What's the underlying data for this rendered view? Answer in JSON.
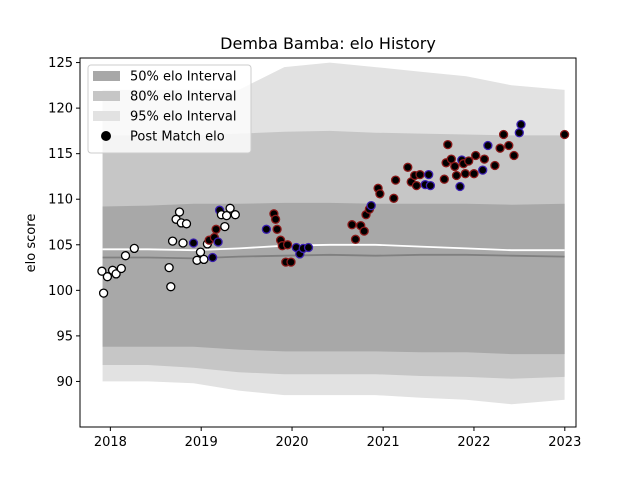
{
  "chart_data": {
    "type": "scatter",
    "title": "Demba Bamba: elo History",
    "xlabel": "",
    "ylabel": "elo score",
    "xlim": [
      "2017-09-01",
      "2023-02-15"
    ],
    "ylim": [
      85,
      125.5
    ],
    "x_ticks": [
      "2018",
      "2019",
      "2020",
      "2021",
      "2022",
      "2023"
    ],
    "y_ticks": [
      90,
      95,
      100,
      105,
      110,
      115,
      120,
      125
    ],
    "grid": false,
    "legend": {
      "position": "top-left",
      "entries": [
        "50% elo Interval",
        "80% elo Interval",
        "95% elo Interval",
        "Post Match elo"
      ]
    },
    "colors": {
      "band_50": "#a8a8a8",
      "band_80": "#c6c6c6",
      "band_95": "#e2e2e2",
      "median_line": "#808080",
      "mean_line": "#ffffff",
      "point_before": "#ffffff",
      "point_after": "#000000",
      "edge_red": "#8b1a1a",
      "edge_blue": "#3a1fb0"
    },
    "bands": {
      "x": [
        "2017-12-01",
        "2018-06-01",
        "2018-12-01",
        "2019-06-01",
        "2019-12-01",
        "2020-06-01",
        "2020-12-01",
        "2021-06-01",
        "2021-12-01",
        "2022-06-01",
        "2022-12-31"
      ],
      "p95_upper": [
        122,
        122,
        122,
        122,
        124.5,
        125,
        124.5,
        124,
        123.5,
        122.5,
        122
      ],
      "p95_lower": [
        90,
        90,
        89.8,
        89,
        88.5,
        88.5,
        88.5,
        88.2,
        88,
        87.5,
        88
      ],
      "p80_upper": [
        117,
        117,
        117,
        117.2,
        117.4,
        117.5,
        117.3,
        117.2,
        117.1,
        117,
        117
      ],
      "p80_lower": [
        91.8,
        91.8,
        91.5,
        91,
        90.8,
        90.8,
        90.8,
        90.6,
        90.5,
        90.3,
        90.5
      ],
      "p50_upper": [
        109.2,
        109.3,
        109.5,
        109.5,
        109.6,
        109.6,
        109.5,
        109.5,
        109.5,
        109.4,
        109.5
      ],
      "p50_lower": [
        93.8,
        93.8,
        93.8,
        93.5,
        93.3,
        93.3,
        93.3,
        93.2,
        93.2,
        93,
        93
      ],
      "median": [
        103.6,
        103.6,
        103.5,
        103.7,
        103.8,
        103.9,
        103.8,
        103.9,
        103.9,
        103.8,
        103.7
      ],
      "mean": [
        104.5,
        104.5,
        104.4,
        104.6,
        104.9,
        105,
        105,
        104.8,
        104.6,
        104.4,
        104.4
      ]
    },
    "points": [
      {
        "x": "2017-11-28",
        "y": 102.1,
        "fill": "white",
        "edge": "black"
      },
      {
        "x": "2017-12-05",
        "y": 99.7,
        "fill": "white",
        "edge": "black"
      },
      {
        "x": "2017-12-20",
        "y": 101.5,
        "fill": "white",
        "edge": "black"
      },
      {
        "x": "2018-01-10",
        "y": 102.2,
        "fill": "white",
        "edge": "black"
      },
      {
        "x": "2018-01-24",
        "y": 101.8,
        "fill": "white",
        "edge": "black"
      },
      {
        "x": "2018-02-14",
        "y": 102.4,
        "fill": "white",
        "edge": "black"
      },
      {
        "x": "2018-03-03",
        "y": 103.8,
        "fill": "white",
        "edge": "black"
      },
      {
        "x": "2018-04-07",
        "y": 104.6,
        "fill": "white",
        "edge": "black"
      },
      {
        "x": "2018-08-25",
        "y": 102.5,
        "fill": "white",
        "edge": "black"
      },
      {
        "x": "2018-09-01",
        "y": 100.4,
        "fill": "white",
        "edge": "black"
      },
      {
        "x": "2018-09-08",
        "y": 105.4,
        "fill": "white",
        "edge": "black"
      },
      {
        "x": "2018-09-22",
        "y": 107.8,
        "fill": "white",
        "edge": "black"
      },
      {
        "x": "2018-10-06",
        "y": 108.6,
        "fill": "white",
        "edge": "black"
      },
      {
        "x": "2018-10-13",
        "y": 107.4,
        "fill": "white",
        "edge": "black"
      },
      {
        "x": "2018-10-20",
        "y": 105.2,
        "fill": "white",
        "edge": "black"
      },
      {
        "x": "2018-11-03",
        "y": 107.3,
        "fill": "white",
        "edge": "black"
      },
      {
        "x": "2018-12-01",
        "y": 105.2,
        "fill": "black",
        "edge": "blue"
      },
      {
        "x": "2018-12-15",
        "y": 103.3,
        "fill": "white",
        "edge": "black"
      },
      {
        "x": "2018-12-29",
        "y": 104.2,
        "fill": "white",
        "edge": "black"
      },
      {
        "x": "2019-01-12",
        "y": 103.4,
        "fill": "white",
        "edge": "black"
      },
      {
        "x": "2019-01-26",
        "y": 105.1,
        "fill": "white",
        "edge": "black"
      },
      {
        "x": "2019-02-02",
        "y": 105.5,
        "fill": "black",
        "edge": "red"
      },
      {
        "x": "2019-02-16",
        "y": 103.6,
        "fill": "black",
        "edge": "blue"
      },
      {
        "x": "2019-02-23",
        "y": 105.8,
        "fill": "black",
        "edge": "red"
      },
      {
        "x": "2019-03-02",
        "y": 106.7,
        "fill": "black",
        "edge": "red"
      },
      {
        "x": "2019-03-10",
        "y": 105.3,
        "fill": "black",
        "edge": "blue"
      },
      {
        "x": "2019-03-16",
        "y": 108.8,
        "fill": "black",
        "edge": "blue"
      },
      {
        "x": "2019-03-23",
        "y": 108.3,
        "fill": "white",
        "edge": "black"
      },
      {
        "x": "2019-04-06",
        "y": 107.0,
        "fill": "white",
        "edge": "black"
      },
      {
        "x": "2019-04-13",
        "y": 108.2,
        "fill": "white",
        "edge": "black"
      },
      {
        "x": "2019-04-27",
        "y": 109.0,
        "fill": "white",
        "edge": "black"
      },
      {
        "x": "2019-05-18",
        "y": 108.3,
        "fill": "white",
        "edge": "black"
      },
      {
        "x": "2019-09-20",
        "y": 106.7,
        "fill": "black",
        "edge": "blue"
      },
      {
        "x": "2019-10-20",
        "y": 108.4,
        "fill": "black",
        "edge": "red"
      },
      {
        "x": "2019-10-27",
        "y": 107.8,
        "fill": "black",
        "edge": "red"
      },
      {
        "x": "2019-11-02",
        "y": 106.7,
        "fill": "black",
        "edge": "red"
      },
      {
        "x": "2019-11-16",
        "y": 105.5,
        "fill": "black",
        "edge": "red"
      },
      {
        "x": "2019-11-23",
        "y": 104.9,
        "fill": "black",
        "edge": "red"
      },
      {
        "x": "2019-12-07",
        "y": 103.1,
        "fill": "black",
        "edge": "red"
      },
      {
        "x": "2019-12-14",
        "y": 105.0,
        "fill": "black",
        "edge": "red"
      },
      {
        "x": "2019-12-28",
        "y": 103.1,
        "fill": "black",
        "edge": "red"
      },
      {
        "x": "2020-01-18",
        "y": 104.7,
        "fill": "black",
        "edge": "blue"
      },
      {
        "x": "2020-02-01",
        "y": 104.0,
        "fill": "black",
        "edge": "blue"
      },
      {
        "x": "2020-02-15",
        "y": 104.6,
        "fill": "black",
        "edge": "blue"
      },
      {
        "x": "2020-03-07",
        "y": 104.7,
        "fill": "black",
        "edge": "blue"
      },
      {
        "x": "2020-08-29",
        "y": 107.2,
        "fill": "black",
        "edge": "red"
      },
      {
        "x": "2020-09-12",
        "y": 105.6,
        "fill": "black",
        "edge": "red"
      },
      {
        "x": "2020-10-03",
        "y": 107.1,
        "fill": "black",
        "edge": "red"
      },
      {
        "x": "2020-10-17",
        "y": 106.5,
        "fill": "black",
        "edge": "red"
      },
      {
        "x": "2020-10-24",
        "y": 108.3,
        "fill": "black",
        "edge": "red"
      },
      {
        "x": "2020-11-07",
        "y": 108.9,
        "fill": "black",
        "edge": "red"
      },
      {
        "x": "2020-11-14",
        "y": 109.3,
        "fill": "black",
        "edge": "blue"
      },
      {
        "x": "2020-12-12",
        "y": 111.2,
        "fill": "black",
        "edge": "red"
      },
      {
        "x": "2020-12-19",
        "y": 110.6,
        "fill": "black",
        "edge": "red"
      },
      {
        "x": "2021-02-13",
        "y": 110.1,
        "fill": "black",
        "edge": "red"
      },
      {
        "x": "2021-02-20",
        "y": 112.1,
        "fill": "black",
        "edge": "red"
      },
      {
        "x": "2021-04-10",
        "y": 113.5,
        "fill": "black",
        "edge": "red"
      },
      {
        "x": "2021-04-24",
        "y": 111.9,
        "fill": "black",
        "edge": "red"
      },
      {
        "x": "2021-05-08",
        "y": 112.6,
        "fill": "black",
        "edge": "red"
      },
      {
        "x": "2021-05-15",
        "y": 111.5,
        "fill": "black",
        "edge": "red"
      },
      {
        "x": "2021-05-29",
        "y": 112.7,
        "fill": "black",
        "edge": "red"
      },
      {
        "x": "2021-06-19",
        "y": 111.6,
        "fill": "black",
        "edge": "blue"
      },
      {
        "x": "2021-07-03",
        "y": 112.7,
        "fill": "black",
        "edge": "blue"
      },
      {
        "x": "2021-07-10",
        "y": 111.5,
        "fill": "black",
        "edge": "blue"
      },
      {
        "x": "2021-09-04",
        "y": 112.2,
        "fill": "black",
        "edge": "red"
      },
      {
        "x": "2021-09-11",
        "y": 114.0,
        "fill": "black",
        "edge": "red"
      },
      {
        "x": "2021-09-18",
        "y": 116.0,
        "fill": "black",
        "edge": "red"
      },
      {
        "x": "2021-10-02",
        "y": 114.4,
        "fill": "black",
        "edge": "red"
      },
      {
        "x": "2021-10-16",
        "y": 113.6,
        "fill": "black",
        "edge": "red"
      },
      {
        "x": "2021-10-23",
        "y": 112.6,
        "fill": "black",
        "edge": "red"
      },
      {
        "x": "2021-11-06",
        "y": 111.4,
        "fill": "black",
        "edge": "blue"
      },
      {
        "x": "2021-11-13",
        "y": 114.3,
        "fill": "black",
        "edge": "blue"
      },
      {
        "x": "2021-11-20",
        "y": 113.9,
        "fill": "black",
        "edge": "red"
      },
      {
        "x": "2021-11-27",
        "y": 112.8,
        "fill": "black",
        "edge": "red"
      },
      {
        "x": "2021-12-11",
        "y": 114.2,
        "fill": "black",
        "edge": "red"
      },
      {
        "x": "2022-01-01",
        "y": 112.8,
        "fill": "black",
        "edge": "red"
      },
      {
        "x": "2022-01-08",
        "y": 114.8,
        "fill": "black",
        "edge": "red"
      },
      {
        "x": "2022-02-05",
        "y": 113.2,
        "fill": "black",
        "edge": "blue"
      },
      {
        "x": "2022-02-12",
        "y": 114.4,
        "fill": "black",
        "edge": "red"
      },
      {
        "x": "2022-02-26",
        "y": 115.9,
        "fill": "black",
        "edge": "blue"
      },
      {
        "x": "2022-03-26",
        "y": 113.7,
        "fill": "black",
        "edge": "red"
      },
      {
        "x": "2022-04-16",
        "y": 115.6,
        "fill": "black",
        "edge": "red"
      },
      {
        "x": "2022-04-30",
        "y": 117.1,
        "fill": "black",
        "edge": "red"
      },
      {
        "x": "2022-05-21",
        "y": 115.9,
        "fill": "black",
        "edge": "red"
      },
      {
        "x": "2022-06-11",
        "y": 114.8,
        "fill": "black",
        "edge": "red"
      },
      {
        "x": "2022-07-02",
        "y": 117.3,
        "fill": "black",
        "edge": "blue"
      },
      {
        "x": "2022-07-09",
        "y": 118.2,
        "fill": "black",
        "edge": "blue"
      },
      {
        "x": "2022-12-31",
        "y": 117.1,
        "fill": "black",
        "edge": "red"
      }
    ]
  }
}
